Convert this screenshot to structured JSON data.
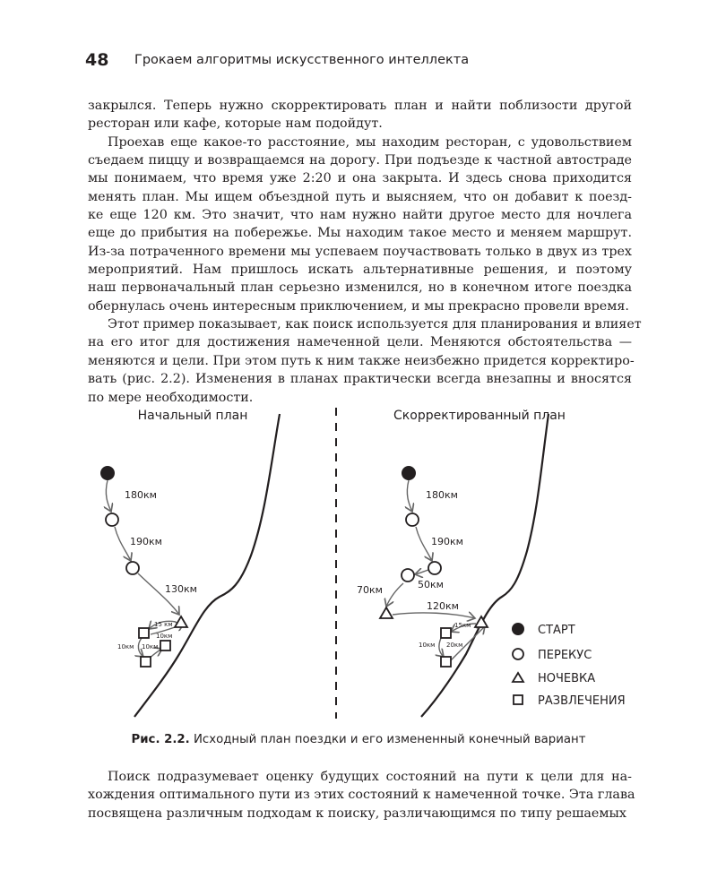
{
  "header": {
    "page_number": "48",
    "running_title": "Грокаем алгоритмы искусственного интеллекта"
  },
  "body_top": [
    {
      "indent": false,
      "lines": [
        "закрылся. Теперь нужно скорректировать план и найти поблизости другой",
        "ресторан или кафе, которые нам подойдут."
      ]
    },
    {
      "indent": true,
      "lines": [
        "Проехав еще какое-то расстояние, мы находим ресторан, с удовольствием",
        "съедаем пиццу и возвращаемся на дорогу. При подъезде к частной автостраде",
        "мы понимаем, что время уже 2:20 и она закрыта. И здесь снова приходится",
        "менять план. Мы ищем объездной путь и выясняем, что он добавит к поезд-",
        "ке еще 120 км. Это значит, что нам нужно найти другое место для ночлега",
        "еще до прибытия на побережье. Мы находим такое место и меняем маршрут.",
        "Из-за потраченного времени мы успеваем поучаствовать только в двух из трех",
        "мероприятий. Нам пришлось искать альтернативные решения, и поэтому",
        "наш первоначальный план серьезно изменился, но в конечном итоге поездка",
        "обернулась очень интересным приключением, и мы прекрасно провели время."
      ]
    },
    {
      "indent": true,
      "lines": [
        "Этот пример показывает, как поиск используется для планирования и влияет",
        "на его итог для достижения намеченной цели. Меняются обстоятельства —",
        "меняются и цели. При этом путь к ним также неизбежно придется корректиро-",
        "вать (рис. 2.2). Изменения в планах практически всегда внезапны и вносятся",
        "по мере необходимости."
      ]
    }
  ],
  "figure": {
    "left_title": "Начальный план",
    "right_title": "Скорректированный план",
    "left_labels": [
      "180км",
      "190км",
      "130км",
      "15 км",
      "10км",
      "10км",
      "10км"
    ],
    "right_labels": [
      "180км",
      "190км",
      "50км",
      "70км",
      "120км",
      "15км",
      "10км",
      "20км"
    ],
    "legend": [
      {
        "icon": "filled-circle",
        "label": "СТАРТ"
      },
      {
        "icon": "circle",
        "label": "ПЕРЕКУС"
      },
      {
        "icon": "triangle",
        "label": "НОЧЕВКА"
      },
      {
        "icon": "square",
        "label": "РАЗВЛЕЧЕНИЯ"
      }
    ],
    "caption_number": "Рис. 2.2.",
    "caption_text": "Исходный план поездки и его измененный конечный вариант"
  },
  "body_bottom": [
    {
      "indent": true,
      "lines": [
        "Поиск подразумевает оценку будущих состояний на пути к цели для на-",
        "хождения оптимального пути из этих состояний к намеченной точке. Эта глава",
        "посвящена различным подходам к поиску, различающимся по типу решаемых"
      ]
    }
  ]
}
